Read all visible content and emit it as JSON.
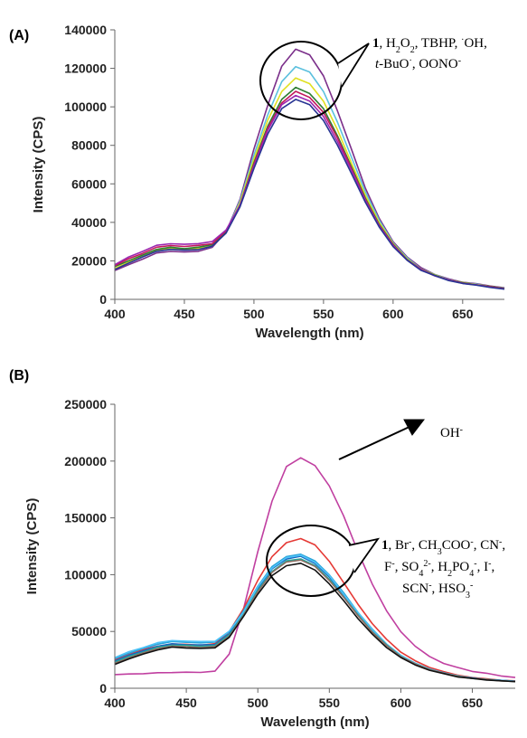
{
  "chart_data": [
    {
      "type": "line",
      "panel_label": "(A)",
      "xlabel": "Wavelength (nm)",
      "ylabel": "Intensity (CPS)",
      "xlim": [
        400,
        680
      ],
      "ylim": [
        0,
        140000
      ],
      "xticks": [
        400,
        450,
        500,
        550,
        600,
        650
      ],
      "xtick_labels": [
        "400",
        "450",
        "500",
        "550",
        "600",
        "650"
      ],
      "yticks": [
        0,
        20000,
        40000,
        60000,
        80000,
        100000,
        120000,
        140000
      ],
      "ytick_labels": [
        "0",
        "20000",
        "40000",
        "60000",
        "80000",
        "100000",
        "120000",
        "140000"
      ],
      "grid": false,
      "annotation": {
        "line1_bold": "1",
        "line1": ", H2O2, TBHP, ·OH,",
        "line2": "t-BuO·, OONO-"
      },
      "x": [
        400,
        410,
        420,
        430,
        440,
        450,
        460,
        470,
        480,
        490,
        500,
        510,
        520,
        530,
        540,
        550,
        560,
        570,
        580,
        590,
        600,
        610,
        620,
        630,
        640,
        650,
        660,
        670,
        680
      ],
      "series": [
        {
          "color": "#7b2f8a",
          "values": [
            15000,
            18000,
            21000,
            24000,
            25000,
            24500,
            25000,
            27000,
            35000,
            52000,
            78000,
            101000,
            121000,
            130000,
            127000,
            116000,
            98000,
            78000,
            58000,
            42000,
            30000,
            22000,
            16500,
            13000,
            10500,
            9000,
            8000,
            7000,
            6000
          ]
        },
        {
          "color": "#5bc0de",
          "values": [
            16000,
            19000,
            22000,
            25000,
            26000,
            25500,
            26000,
            27500,
            35000,
            51000,
            75000,
            96000,
            113000,
            121000,
            118000,
            108000,
            92000,
            74000,
            56000,
            41000,
            29500,
            21500,
            16000,
            12800,
            10300,
            8800,
            7800,
            6800,
            5800
          ]
        },
        {
          "color": "#e0e020",
          "values": [
            16000,
            19500,
            22500,
            25500,
            26500,
            26000,
            26500,
            28000,
            35000,
            50000,
            73000,
            93000,
            108000,
            115000,
            112000,
            103000,
            88000,
            71000,
            54000,
            40000,
            29000,
            21000,
            15800,
            12600,
            10200,
            8700,
            7700,
            6700,
            5700
          ]
        },
        {
          "color": "#2e7d32",
          "values": [
            17000,
            20000,
            23000,
            26000,
            27000,
            26500,
            27000,
            28500,
            35000,
            49000,
            71000,
            90000,
            104000,
            110000,
            107000,
            99000,
            85000,
            69000,
            52500,
            39000,
            28500,
            20800,
            15600,
            12500,
            10100,
            8600,
            7600,
            6600,
            5600
          ]
        },
        {
          "color": "#c2185b",
          "values": [
            17500,
            21000,
            24000,
            27000,
            28000,
            27500,
            28000,
            29000,
            35500,
            49000,
            70000,
            89000,
            102000,
            108000,
            105000,
            97000,
            84000,
            68000,
            52000,
            38500,
            28200,
            20600,
            15500,
            12400,
            10000,
            8500,
            7500,
            6500,
            5500
          ]
        },
        {
          "color": "#9c27b0",
          "values": [
            18000,
            22000,
            25000,
            28000,
            29000,
            28500,
            29000,
            30000,
            36000,
            49000,
            69000,
            88000,
            101000,
            106000,
            103000,
            95000,
            82000,
            67000,
            51500,
            38000,
            28000,
            20400,
            15400,
            12300,
            9900,
            8400,
            7400,
            6400,
            5400
          ]
        },
        {
          "color": "#283593",
          "values": [
            15500,
            19000,
            22000,
            25000,
            26000,
            25500,
            26000,
            27500,
            34500,
            48000,
            68000,
            86000,
            99000,
            104000,
            101000,
            93000,
            80000,
            65500,
            50500,
            37500,
            27500,
            20200,
            15200,
            12200,
            9800,
            8300,
            7300,
            6300,
            5300
          ]
        }
      ]
    },
    {
      "type": "line",
      "panel_label": "(B)",
      "xlabel": "Wavelength (nm)",
      "ylabel": "Intensity (CPS)",
      "xlim": [
        400,
        680
      ],
      "ylim": [
        0,
        250000
      ],
      "xticks": [
        400,
        450,
        500,
        550,
        600,
        650
      ],
      "xtick_labels": [
        "400",
        "450",
        "500",
        "550",
        "600",
        "650"
      ],
      "yticks": [
        0,
        50000,
        100000,
        150000,
        200000,
        250000
      ],
      "ytick_labels": [
        "0",
        "50000",
        "100000",
        "150000",
        "200000",
        "250000"
      ],
      "grid": false,
      "arrow_label": "OH-",
      "annotation": {
        "line1_bold": "1",
        "line1": ", Br-, CH3COO-, CN-,",
        "line2": "F-, SO42-, H2PO4-, I-,",
        "line3": "SCN-, HSO3-"
      },
      "x": [
        400,
        410,
        420,
        430,
        440,
        450,
        460,
        470,
        480,
        490,
        500,
        510,
        520,
        530,
        540,
        550,
        560,
        570,
        580,
        590,
        600,
        610,
        620,
        630,
        640,
        650,
        660,
        670,
        680
      ],
      "series": [
        {
          "color": "#c03fa0",
          "values": [
            12000,
            12500,
            13000,
            13500,
            14000,
            14000,
            14000,
            15000,
            30000,
            70000,
            120000,
            165000,
            195000,
            203000,
            196000,
            178000,
            152000,
            120000,
            92000,
            68000,
            50000,
            37000,
            28000,
            22000,
            18000,
            15000,
            13000,
            11000,
            9500
          ]
        },
        {
          "color": "#e53935",
          "values": [
            25000,
            30000,
            34000,
            37000,
            39000,
            38500,
            38000,
            39000,
            50000,
            70000,
            95000,
            116000,
            128000,
            132000,
            126000,
            112000,
            93000,
            74000,
            57000,
            43000,
            32000,
            24000,
            18500,
            14500,
            11500,
            9500,
            8200,
            7200,
            6500
          ]
        },
        {
          "color": "#29a3d8",
          "values": [
            26000,
            31000,
            35000,
            39000,
            41000,
            40500,
            40000,
            40500,
            50000,
            68000,
            90000,
            107000,
            116000,
            118000,
            112000,
            100000,
            84000,
            67000,
            52000,
            39000,
            29000,
            22000,
            17000,
            13500,
            10800,
            9000,
            7800,
            6900,
            6200
          ]
        },
        {
          "color": "#1565c0",
          "values": [
            24000,
            29000,
            33000,
            37000,
            39000,
            38500,
            38000,
            38500,
            48000,
            66000,
            88000,
            105000,
            114000,
            116000,
            110000,
            98000,
            82000,
            65500,
            51000,
            38500,
            28500,
            21500,
            16800,
            13300,
            10600,
            8900,
            7700,
            6800,
            6100
          ]
        },
        {
          "color": "#4fc3f7",
          "values": [
            27000,
            32000,
            36000,
            40000,
            42000,
            41500,
            41000,
            41500,
            50000,
            67000,
            89000,
            106000,
            115000,
            117000,
            111000,
            99000,
            83000,
            66500,
            51500,
            38800,
            28800,
            21800,
            16900,
            13400,
            10700,
            8950,
            7750,
            6850,
            6150
          ]
        },
        {
          "color": "#26a69a",
          "values": [
            23000,
            28000,
            32000,
            36000,
            38000,
            37500,
            37000,
            37500,
            47000,
            65000,
            86000,
            103000,
            112000,
            114000,
            108000,
            96000,
            80500,
            64500,
            50000,
            38000,
            28200,
            21300,
            16600,
            13200,
            10500,
            8800,
            7600,
            6700,
            6000
          ]
        },
        {
          "color": "#8d6e63",
          "values": [
            22000,
            27000,
            31000,
            35000,
            37000,
            36500,
            36000,
            36500,
            46000,
            64000,
            85000,
            102000,
            111000,
            113000,
            107000,
            95000,
            80000,
            64000,
            49500,
            37500,
            28000,
            21200,
            16500,
            13100,
            10400,
            8700,
            7550,
            6650,
            5950
          ]
        },
        {
          "color": "#111111",
          "values": [
            21000,
            26000,
            30000,
            34000,
            36000,
            35500,
            35000,
            35500,
            45000,
            63000,
            83000,
            99000,
            108000,
            110000,
            104000,
            92000,
            77000,
            61500,
            47500,
            36000,
            27000,
            20500,
            16000,
            12700,
            10100,
            8500,
            7400,
            6500,
            5800
          ]
        }
      ]
    }
  ]
}
